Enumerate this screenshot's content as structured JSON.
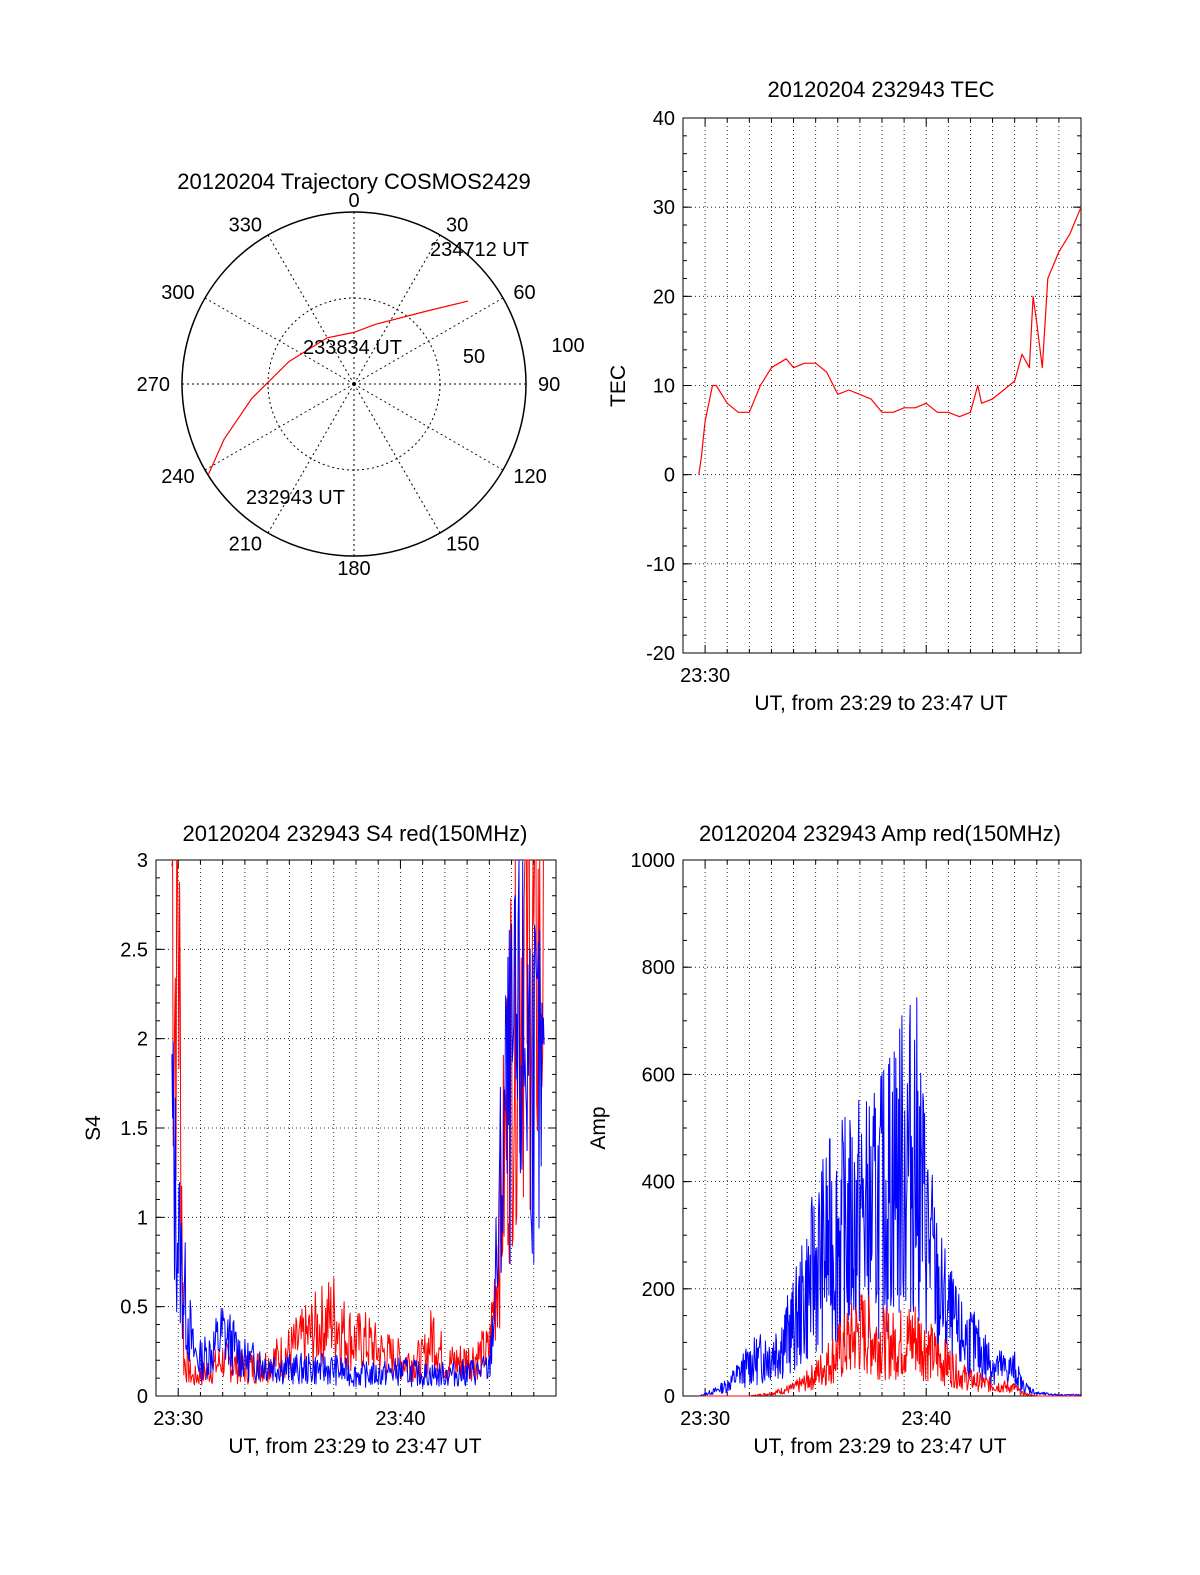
{
  "colors": {
    "red": "#ff0000",
    "blue": "#0000ff",
    "axis": "#000000",
    "grid": "#000000"
  },
  "chart_data": [
    {
      "id": "trajectory",
      "type": "polar",
      "title": "20120204 Trajectory COSMOS2429",
      "azimuth_labels": [
        "0",
        "30",
        "60",
        "90",
        "120",
        "150",
        "180",
        "210",
        "240",
        "270",
        "300",
        "330"
      ],
      "elevation_ring_labels": [
        "50",
        "100"
      ],
      "annotations": [
        "232943 UT",
        "233834 UT",
        "234712 UT"
      ],
      "series": [
        {
          "color": "red",
          "points_az_zenith": [
            [
              238,
              100
            ],
            [
              247,
              82
            ],
            [
              262,
              60
            ],
            [
              289,
              40
            ],
            [
              330,
              31
            ],
            [
              0,
              30
            ],
            [
              20,
              37
            ],
            [
              45,
              60
            ],
            [
              54,
              82
            ]
          ]
        }
      ]
    },
    {
      "id": "tec",
      "type": "line",
      "title": "20120204 232943 TEC",
      "xlabel": "UT, from 23:29 to 23:47 UT",
      "ylabel": "TEC",
      "ylim": [
        -20,
        40
      ],
      "yticks": [
        "-20",
        "-10",
        "0",
        "10",
        "20",
        "30",
        "40"
      ],
      "xlim": [
        "23:29",
        "23:47"
      ],
      "xticks": [
        "23:30"
      ],
      "grid": true,
      "series": [
        {
          "color": "red",
          "x": [
            "23:29:43",
            "23:29:50",
            "23:30:00",
            "23:30:20",
            "23:30:30",
            "23:31:00",
            "23:31:30",
            "23:32:00",
            "23:32:30",
            "23:33:00",
            "23:33:40",
            "23:34:00",
            "23:34:30",
            "23:35:00",
            "23:35:30",
            "23:36:00",
            "23:36:30",
            "23:37:00",
            "23:37:30",
            "23:38:00",
            "23:38:30",
            "23:39:00",
            "23:39:30",
            "23:40:00",
            "23:40:30",
            "23:41:00",
            "23:41:30",
            "23:42:00",
            "23:42:20",
            "23:42:30",
            "23:43:00",
            "23:43:30",
            "23:44:00",
            "23:44:20",
            "23:44:40",
            "23:44:50",
            "23:45:00",
            "23:45:15",
            "23:45:30",
            "23:46:00",
            "23:46:30",
            "23:47:00"
          ],
          "y": [
            0,
            2,
            6,
            10,
            10,
            8,
            7,
            7,
            10,
            12,
            13,
            12,
            12.5,
            12.5,
            11.5,
            9,
            9.5,
            9,
            8.5,
            7,
            7,
            7.5,
            7.5,
            8,
            7,
            7,
            6.5,
            7,
            10,
            8,
            8.5,
            9.5,
            10.5,
            13.5,
            12,
            20,
            17,
            12,
            22,
            25,
            27,
            30
          ]
        }
      ]
    },
    {
      "id": "s4",
      "type": "line",
      "title": "20120204 232943 S4 red(150MHz)",
      "xlabel": "UT, from 23:29 to 23:47 UT",
      "ylabel": "S4",
      "ylim": [
        0,
        3
      ],
      "yticks": [
        "0",
        "0.5",
        "1",
        "1.5",
        "2",
        "2.5",
        "3"
      ],
      "xlim": [
        "23:29",
        "23:47"
      ],
      "xticks": [
        "23:30",
        "23:40"
      ],
      "grid": true,
      "series": [
        {
          "color": "red",
          "x": [
            "23:29:43",
            "23:29:50",
            "23:30:00",
            "23:30:15",
            "23:30:40",
            "23:31:00",
            "23:31:30",
            "23:32:00",
            "23:33:00",
            "23:34:00",
            "23:35:00",
            "23:36:00",
            "23:36:30",
            "23:37:00",
            "23:37:30",
            "23:38:00",
            "23:38:30",
            "23:39:00",
            "23:40:00",
            "23:41:00",
            "23:41:30",
            "23:42:00",
            "23:43:00",
            "23:44:00",
            "23:44:20",
            "23:44:40",
            "23:45:00",
            "23:45:20",
            "23:45:40",
            "23:46:00",
            "23:46:30"
          ],
          "y": [
            3,
            2.2,
            2.8,
            0.2,
            0.1,
            0.12,
            0.15,
            0.2,
            0.15,
            0.18,
            0.25,
            0.35,
            0.4,
            0.45,
            0.35,
            0.3,
            0.3,
            0.25,
            0.2,
            0.2,
            0.35,
            0.18,
            0.2,
            0.25,
            0.7,
            1.3,
            2.0,
            2.5,
            2.6,
            2.4,
            2.5
          ]
        },
        {
          "color": "blue",
          "x": [
            "23:29:43",
            "23:29:50",
            "23:30:00",
            "23:30:15",
            "23:30:40",
            "23:31:00",
            "23:31:30",
            "23:32:00",
            "23:33:00",
            "23:34:00",
            "23:35:00",
            "23:36:00",
            "23:37:00",
            "23:38:00",
            "23:39:00",
            "23:40:00",
            "23:41:00",
            "23:42:00",
            "23:43:00",
            "23:44:00",
            "23:44:20",
            "23:44:40",
            "23:45:00",
            "23:45:20",
            "23:45:40",
            "23:46:00",
            "23:46:30"
          ],
          "y": [
            1.5,
            1.2,
            0.9,
            0.6,
            0.25,
            0.2,
            0.25,
            0.35,
            0.2,
            0.18,
            0.15,
            0.15,
            0.15,
            0.12,
            0.12,
            0.14,
            0.12,
            0.12,
            0.13,
            0.15,
            0.7,
            1.5,
            1.7,
            1.9,
            2.0,
            1.8,
            1.5
          ]
        }
      ]
    },
    {
      "id": "amp",
      "type": "line",
      "title": "20120204 232943 Amp red(150MHz)",
      "xlabel": "UT, from 23:29 to 23:47 UT",
      "ylabel": "Amp",
      "ylim": [
        0,
        1000
      ],
      "yticks": [
        "0",
        "200",
        "400",
        "600",
        "800",
        "1000"
      ],
      "xlim": [
        "23:29",
        "23:47"
      ],
      "xticks": [
        "23:30",
        "23:40"
      ],
      "grid": true,
      "series": [
        {
          "color": "blue",
          "x": [
            "23:29:43",
            "23:30:30",
            "23:31:00",
            "23:31:30",
            "23:32:00",
            "23:32:30",
            "23:33:00",
            "23:33:30",
            "23:34:00",
            "23:34:30",
            "23:35:00",
            "23:35:30",
            "23:36:00",
            "23:36:30",
            "23:37:00",
            "23:37:30",
            "23:38:00",
            "23:38:30",
            "23:39:00",
            "23:39:30",
            "23:40:00",
            "23:40:30",
            "23:41:00",
            "23:41:30",
            "23:42:00",
            "23:42:30",
            "23:43:00",
            "23:43:30",
            "23:44:00",
            "23:44:20",
            "23:45:00",
            "23:46:00",
            "23:47:00"
          ],
          "y": [
            0,
            10,
            20,
            40,
            60,
            70,
            80,
            100,
            130,
            180,
            240,
            280,
            300,
            310,
            340,
            330,
            360,
            420,
            430,
            460,
            320,
            200,
            150,
            110,
            100,
            80,
            60,
            50,
            50,
            20,
            5,
            2,
            2
          ]
        },
        {
          "color": "red",
          "x": [
            "23:29:43",
            "23:32:00",
            "23:33:00",
            "23:34:00",
            "23:34:30",
            "23:35:00",
            "23:35:30",
            "23:36:00",
            "23:36:30",
            "23:37:00",
            "23:37:30",
            "23:38:00",
            "23:38:30",
            "23:39:00",
            "23:39:30",
            "23:40:00",
            "23:40:30",
            "23:41:00",
            "23:41:30",
            "23:42:00",
            "23:43:00",
            "23:44:00",
            "23:44:20",
            "23:45:00",
            "23:47:00"
          ],
          "y": [
            0,
            0,
            5,
            15,
            25,
            40,
            60,
            80,
            100,
            120,
            110,
            100,
            95,
            100,
            110,
            90,
            70,
            60,
            40,
            30,
            20,
            15,
            5,
            0,
            0
          ]
        }
      ]
    }
  ]
}
